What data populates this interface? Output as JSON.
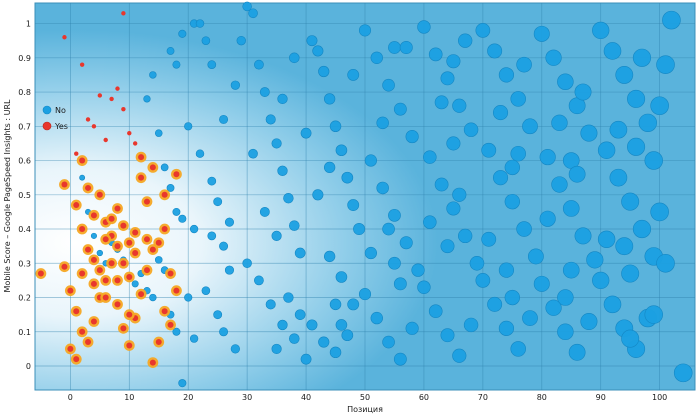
{
  "chart_data": {
    "type": "scatter",
    "xlabel": "Позиция",
    "ylabel": "Mobile Score – Google PageSpeed Insights : URL",
    "xlim": [
      -6,
      106
    ],
    "ylim": [
      -0.07,
      1.06
    ],
    "x_ticks": [
      0,
      10,
      20,
      30,
      40,
      50,
      60,
      70,
      80,
      90,
      100
    ],
    "y_ticks": [
      0,
      0.1,
      0.2,
      0.3,
      0.4,
      0.5,
      0.6,
      0.7,
      0.8,
      0.9,
      1
    ],
    "x_tick_labels": [
      "0",
      "10",
      "20",
      "30",
      "40",
      "50",
      "60",
      "70",
      "80",
      "90",
      "100"
    ],
    "y_tick_labels": [
      "0",
      "0.1",
      "0.2",
      "0.3",
      "0.4",
      "0.5",
      "0.6",
      "0.7",
      "0.8",
      "0.9",
      "1"
    ],
    "grid": true,
    "legend_position": "left",
    "colors": {
      "No": "#1ba0e2",
      "Yes": "#e8372d",
      "yes_ring": "#f5a623",
      "background": "#5bb4dc"
    },
    "series": [
      {
        "name": "No",
        "points": [
          [
            2,
            0.55
          ],
          [
            3,
            0.45
          ],
          [
            4,
            0.38
          ],
          [
            5,
            0.33
          ],
          [
            6,
            0.3
          ],
          [
            7,
            0.36
          ],
          [
            8,
            0.34
          ],
          [
            9,
            0.31
          ],
          [
            11,
            0.24
          ],
          [
            12,
            0.27
          ],
          [
            13,
            0.22
          ],
          [
            14,
            0.2
          ],
          [
            15,
            0.31
          ],
          [
            16,
            0.28
          ],
          [
            17,
            0.52
          ],
          [
            18,
            0.45
          ],
          [
            19,
            0.43
          ],
          [
            13,
            0.78
          ],
          [
            14,
            0.85
          ],
          [
            15,
            0.68
          ],
          [
            16,
            0.58
          ],
          [
            17,
            0.92
          ],
          [
            18,
            0.88
          ],
          [
            19,
            0.97
          ],
          [
            20,
            0.7
          ],
          [
            21,
            1.0
          ],
          [
            22,
            1.0
          ],
          [
            23,
            0.95
          ],
          [
            24,
            0.88
          ],
          [
            22,
            0.62
          ],
          [
            24,
            0.54
          ],
          [
            25,
            0.48
          ],
          [
            26,
            0.35
          ],
          [
            27,
            0.28
          ],
          [
            21,
            0.4
          ],
          [
            23,
            0.22
          ],
          [
            25,
            0.15
          ],
          [
            26,
            0.1
          ],
          [
            28,
            0.05
          ],
          [
            29,
            0.95
          ],
          [
            30,
            1.05
          ],
          [
            31,
            1.03
          ],
          [
            32,
            0.88
          ],
          [
            33,
            0.8
          ],
          [
            34,
            0.72
          ],
          [
            35,
            0.65
          ],
          [
            36,
            0.57
          ],
          [
            37,
            0.49
          ],
          [
            38,
            0.41
          ],
          [
            39,
            0.33
          ],
          [
            30,
            0.3
          ],
          [
            32,
            0.25
          ],
          [
            34,
            0.18
          ],
          [
            36,
            0.12
          ],
          [
            38,
            0.08
          ],
          [
            40,
            0.02
          ],
          [
            31,
            0.62
          ],
          [
            33,
            0.45
          ],
          [
            35,
            0.38
          ],
          [
            37,
            0.2
          ],
          [
            39,
            0.15
          ],
          [
            41,
            0.95
          ],
          [
            42,
            0.92
          ],
          [
            43,
            0.86
          ],
          [
            44,
            0.78
          ],
          [
            45,
            0.7
          ],
          [
            46,
            0.63
          ],
          [
            47,
            0.55
          ],
          [
            48,
            0.47
          ],
          [
            49,
            0.4
          ],
          [
            40,
            0.68
          ],
          [
            42,
            0.5
          ],
          [
            44,
            0.32
          ],
          [
            46,
            0.26
          ],
          [
            48,
            0.18
          ],
          [
            41,
            0.12
          ],
          [
            43,
            0.07
          ],
          [
            45,
            0.04
          ],
          [
            47,
            0.09
          ],
          [
            50,
            0.98
          ],
          [
            52,
            0.9
          ],
          [
            54,
            0.82
          ],
          [
            56,
            0.75
          ],
          [
            58,
            0.67
          ],
          [
            51,
            0.6
          ],
          [
            53,
            0.52
          ],
          [
            55,
            0.44
          ],
          [
            57,
            0.36
          ],
          [
            59,
            0.28
          ],
          [
            50,
            0.21
          ],
          [
            52,
            0.14
          ],
          [
            54,
            0.07
          ],
          [
            56,
            0.02
          ],
          [
            58,
            0.11
          ],
          [
            51,
            0.33
          ],
          [
            53,
            0.71
          ],
          [
            55,
            0.93
          ],
          [
            60,
            0.99
          ],
          [
            62,
            0.91
          ],
          [
            64,
            0.84
          ],
          [
            66,
            0.76
          ],
          [
            68,
            0.69
          ],
          [
            61,
            0.61
          ],
          [
            63,
            0.53
          ],
          [
            65,
            0.46
          ],
          [
            67,
            0.38
          ],
          [
            69,
            0.3
          ],
          [
            60,
            0.23
          ],
          [
            62,
            0.16
          ],
          [
            64,
            0.09
          ],
          [
            66,
            0.03
          ],
          [
            68,
            0.12
          ],
          [
            61,
            0.42
          ],
          [
            63,
            0.77
          ],
          [
            65,
            0.89
          ],
          [
            70,
            0.98
          ],
          [
            72,
            0.92
          ],
          [
            74,
            0.85
          ],
          [
            76,
            0.78
          ],
          [
            78,
            0.7
          ],
          [
            71,
            0.63
          ],
          [
            73,
            0.55
          ],
          [
            75,
            0.48
          ],
          [
            77,
            0.4
          ],
          [
            79,
            0.32
          ],
          [
            70,
            0.25
          ],
          [
            72,
            0.18
          ],
          [
            74,
            0.11
          ],
          [
            76,
            0.05
          ],
          [
            78,
            0.14
          ],
          [
            71,
            0.37
          ],
          [
            73,
            0.74
          ],
          [
            75,
            0.58
          ],
          [
            80,
            0.97
          ],
          [
            82,
            0.9
          ],
          [
            84,
            0.83
          ],
          [
            86,
            0.76
          ],
          [
            88,
            0.68
          ],
          [
            81,
            0.61
          ],
          [
            83,
            0.53
          ],
          [
            85,
            0.46
          ],
          [
            87,
            0.38
          ],
          [
            89,
            0.31
          ],
          [
            80,
            0.24
          ],
          [
            82,
            0.17
          ],
          [
            84,
            0.1
          ],
          [
            86,
            0.04
          ],
          [
            88,
            0.13
          ],
          [
            81,
            0.43
          ],
          [
            83,
            0.71
          ],
          [
            85,
            0.6
          ],
          [
            90,
            0.98
          ],
          [
            92,
            0.92
          ],
          [
            94,
            0.85
          ],
          [
            96,
            0.78
          ],
          [
            98,
            0.71
          ],
          [
            91,
            0.63
          ],
          [
            93,
            0.55
          ],
          [
            95,
            0.48
          ],
          [
            97,
            0.4
          ],
          [
            99,
            0.32
          ],
          [
            90,
            0.25
          ],
          [
            92,
            0.18
          ],
          [
            94,
            0.11
          ],
          [
            96,
            0.05
          ],
          [
            98,
            0.14
          ],
          [
            91,
            0.37
          ],
          [
            93,
            0.69
          ],
          [
            95,
            0.27
          ],
          [
            102,
            1.01
          ],
          [
            101,
            0.88
          ],
          [
            100,
            0.76
          ],
          [
            99,
            0.6
          ],
          [
            100,
            0.45
          ],
          [
            101,
            0.3
          ],
          [
            99,
            0.15
          ],
          [
            104,
            -0.02
          ],
          [
            48,
            0.85
          ],
          [
            57,
            0.93
          ],
          [
            67,
            0.95
          ],
          [
            77,
            0.88
          ],
          [
            87,
            0.8
          ],
          [
            97,
            0.9
          ],
          [
            44,
            0.58
          ],
          [
            54,
            0.4
          ],
          [
            64,
            0.35
          ],
          [
            74,
            0.28
          ],
          [
            84,
            0.2
          ],
          [
            94,
            0.35
          ],
          [
            46,
            0.12
          ],
          [
            56,
            0.24
          ],
          [
            66,
            0.5
          ],
          [
            76,
            0.62
          ],
          [
            86,
            0.56
          ],
          [
            96,
            0.64
          ],
          [
            36,
            0.78
          ],
          [
            38,
            0.9
          ],
          [
            26,
            0.72
          ],
          [
            28,
            0.82
          ],
          [
            35,
            0.05
          ],
          [
            45,
            0.18
          ],
          [
            55,
            0.3
          ],
          [
            65,
            0.65
          ],
          [
            75,
            0.2
          ],
          [
            85,
            0.28
          ],
          [
            95,
            0.08
          ],
          [
            20,
            0.2
          ],
          [
            21,
            0.08
          ],
          [
            19,
            -0.05
          ],
          [
            18,
            0.1
          ],
          [
            17,
            0.15
          ],
          [
            24,
            0.38
          ],
          [
            27,
            0.42
          ]
        ]
      },
      {
        "name": "Yes",
        "points": [
          [
            -1,
            0.96
          ],
          [
            9,
            1.03
          ],
          [
            2,
            0.88
          ],
          [
            3,
            0.72
          ],
          [
            5,
            0.79
          ],
          [
            7,
            0.78
          ],
          [
            8,
            0.81
          ],
          [
            9,
            0.75
          ],
          [
            10,
            0.68
          ],
          [
            1,
            0.62
          ],
          [
            2,
            0.6
          ],
          [
            4,
            0.7
          ],
          [
            6,
            0.66
          ],
          [
            11,
            0.65
          ],
          [
            -5,
            0.27
          ],
          [
            -1,
            0.53
          ],
          [
            1,
            0.47
          ],
          [
            2,
            0.4
          ],
          [
            3,
            0.52
          ],
          [
            4,
            0.44
          ],
          [
            5,
            0.5
          ],
          [
            6,
            0.42
          ],
          [
            7,
            0.38
          ],
          [
            8,
            0.46
          ],
          [
            9,
            0.41
          ],
          [
            10,
            0.36
          ],
          [
            11,
            0.33
          ],
          [
            12,
            0.55
          ],
          [
            13,
            0.48
          ],
          [
            14,
            0.58
          ],
          [
            12,
            0.61
          ],
          [
            15,
            0.36
          ],
          [
            16,
            0.4
          ],
          [
            17,
            0.27
          ],
          [
            18,
            0.22
          ],
          [
            -1,
            0.29
          ],
          [
            0,
            0.22
          ],
          [
            1,
            0.16
          ],
          [
            2,
            0.1
          ],
          [
            3,
            0.07
          ],
          [
            0,
            0.05
          ],
          [
            1,
            0.02
          ],
          [
            4,
            0.13
          ],
          [
            5,
            0.2
          ],
          [
            6,
            0.25
          ],
          [
            7,
            0.3
          ],
          [
            8,
            0.18
          ],
          [
            9,
            0.11
          ],
          [
            10,
            0.06
          ],
          [
            11,
            0.14
          ],
          [
            12,
            0.21
          ],
          [
            13,
            0.28
          ],
          [
            14,
            0.34
          ],
          [
            15,
            0.07
          ],
          [
            16,
            0.16
          ],
          [
            17,
            0.12
          ],
          [
            14,
            0.01
          ],
          [
            3,
            0.34
          ],
          [
            4,
            0.31
          ],
          [
            5,
            0.28
          ],
          [
            6,
            0.37
          ],
          [
            7,
            0.43
          ],
          [
            8,
            0.35
          ],
          [
            9,
            0.3
          ],
          [
            10,
            0.26
          ],
          [
            11,
            0.39
          ],
          [
            13,
            0.37
          ],
          [
            18,
            0.56
          ],
          [
            16,
            0.5
          ],
          [
            2,
            0.27
          ],
          [
            4,
            0.24
          ],
          [
            6,
            0.2
          ],
          [
            8,
            0.25
          ],
          [
            10,
            0.15
          ]
        ]
      }
    ],
    "legend": [
      {
        "label": "No"
      },
      {
        "label": "Yes"
      }
    ]
  }
}
